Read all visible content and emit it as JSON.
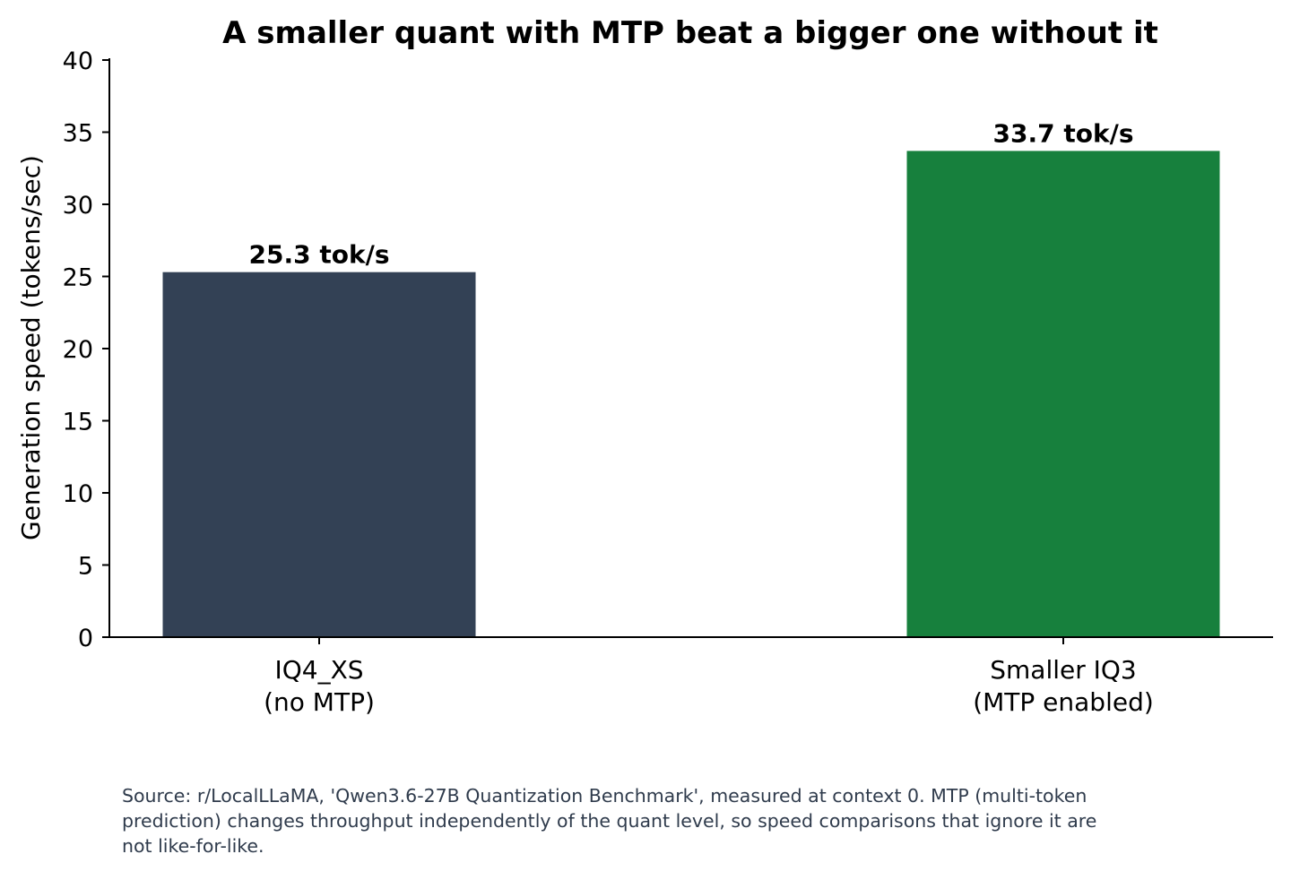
{
  "chart_data": {
    "type": "bar",
    "title": "A smaller quant with MTP beat a bigger one without it",
    "xlabel": "",
    "ylabel": "Generation speed (tokens/sec)",
    "ylim": [
      0,
      40
    ],
    "yticks": [
      0,
      5,
      10,
      15,
      20,
      25,
      30,
      35,
      40
    ],
    "categories": [
      [
        "IQ4_XS",
        "(no MTP)"
      ],
      [
        "Smaller IQ3",
        "(MTP enabled)"
      ]
    ],
    "values": [
      25.3,
      33.7
    ],
    "data_labels": [
      "25.3 tok/s",
      "33.7 tok/s"
    ],
    "colors": [
      "#334155",
      "#17803d"
    ],
    "grid": false,
    "legend": "none"
  },
  "footnote": "Source: r/LocalLLaMA, 'Qwen3.6-27B Quantization Benchmark', measured at context 0. MTP (multi-token prediction) changes throughput independently of the quant level, so speed comparisons that ignore it are not like-for-like."
}
